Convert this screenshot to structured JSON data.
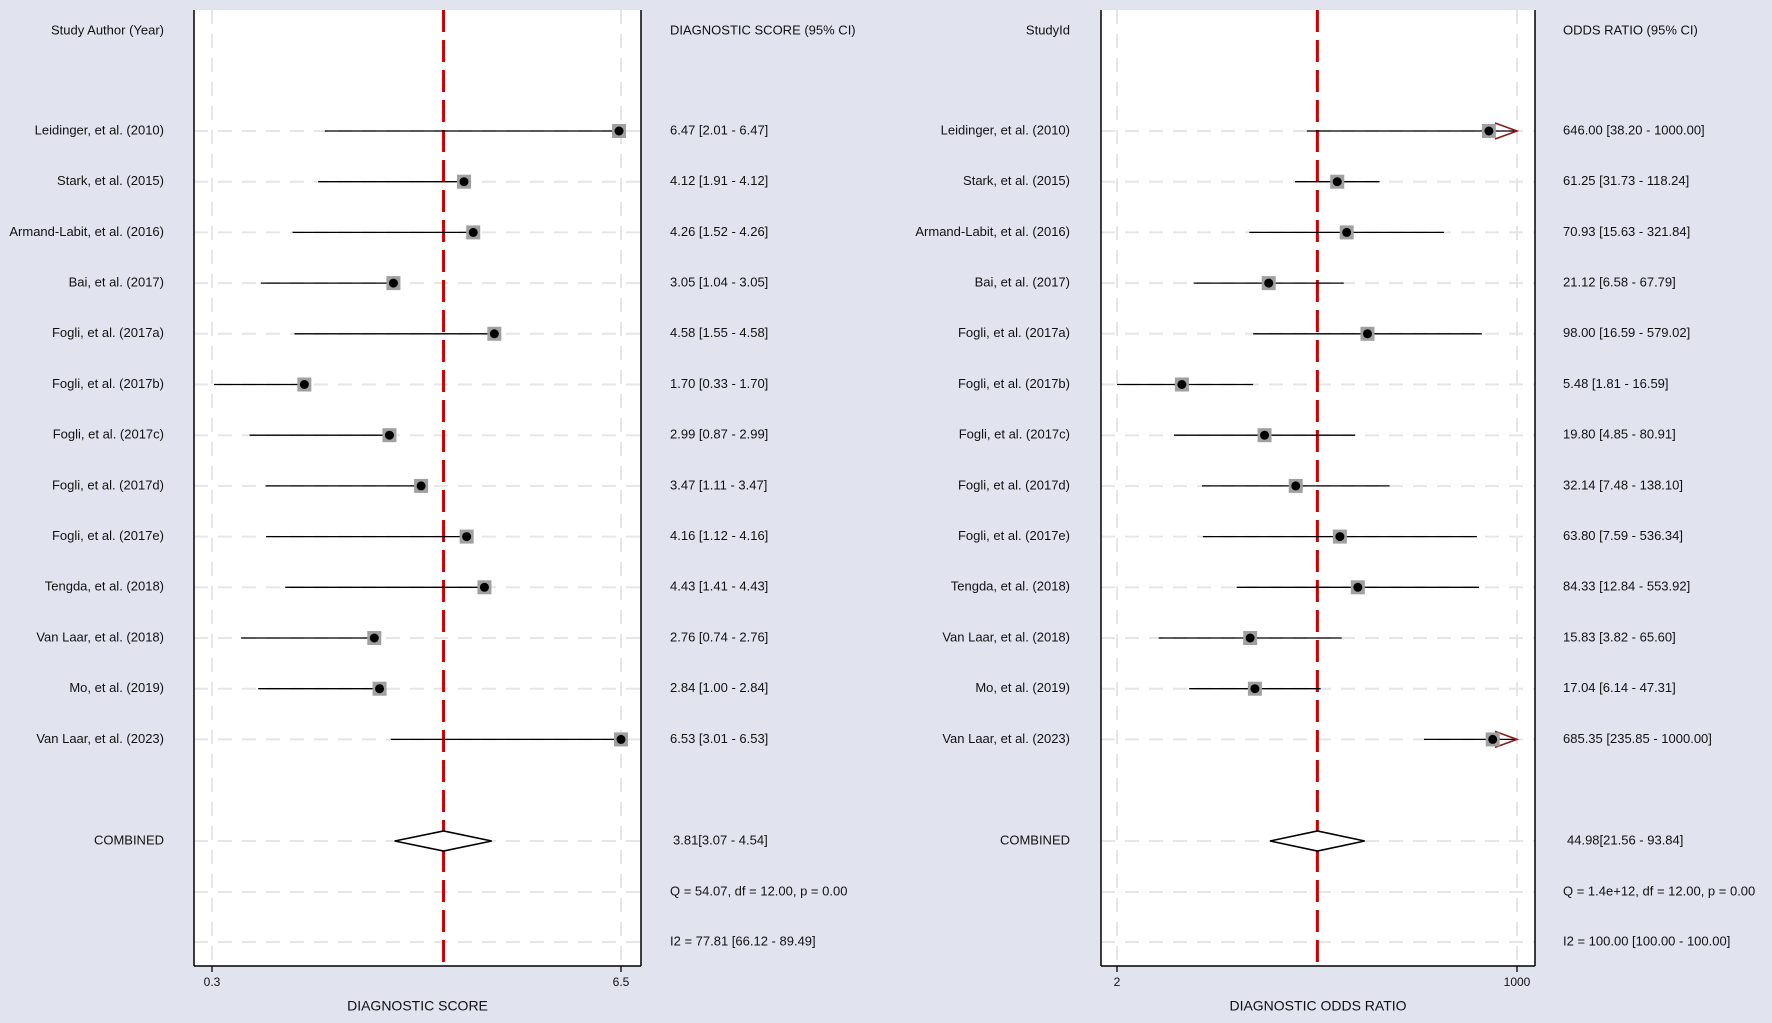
{
  "chart_data": [
    {
      "type": "forest",
      "column_left_header": "Study Author (Year)",
      "column_right_header": "DIAGNOSTIC SCORE (95% CI)",
      "xlabel": "DIAGNOSTIC SCORE",
      "scale": "linear",
      "xlim": [
        0.3,
        6.5
      ],
      "xticks": [
        "0.3",
        "6.5"
      ],
      "reference_line": 3.81,
      "studies": [
        {
          "name": "Leidinger, et al. (2010)",
          "est": 6.47,
          "lo": 2.01,
          "hi": 6.47,
          "label": "6.47 [2.01 - 6.47]"
        },
        {
          "name": "Stark, et al. (2015)",
          "est": 4.12,
          "lo": 1.91,
          "hi": 4.12,
          "label": "4.12 [1.91 - 4.12]"
        },
        {
          "name": "Armand-Labit, et al. (2016)",
          "est": 4.26,
          "lo": 1.52,
          "hi": 4.26,
          "label": "4.26 [1.52 - 4.26]"
        },
        {
          "name": "Bai, et al. (2017)",
          "est": 3.05,
          "lo": 1.04,
          "hi": 3.05,
          "label": "3.05 [1.04 - 3.05]"
        },
        {
          "name": "Fogli, et al. (2017a)",
          "est": 4.58,
          "lo": 1.55,
          "hi": 4.58,
          "label": "4.58 [1.55 - 4.58]"
        },
        {
          "name": "Fogli, et al. (2017b)",
          "est": 1.7,
          "lo": 0.33,
          "hi": 1.7,
          "label": "1.70 [0.33 - 1.70]"
        },
        {
          "name": "Fogli, et al. (2017c)",
          "est": 2.99,
          "lo": 0.87,
          "hi": 2.99,
          "label": "2.99 [0.87 - 2.99]"
        },
        {
          "name": "Fogli, et al. (2017d)",
          "est": 3.47,
          "lo": 1.11,
          "hi": 3.47,
          "label": "3.47 [1.11 - 3.47]"
        },
        {
          "name": "Fogli, et al. (2017e)",
          "est": 4.16,
          "lo": 1.12,
          "hi": 4.16,
          "label": "4.16 [1.12 - 4.16]"
        },
        {
          "name": "Tengda, et al. (2018)",
          "est": 4.43,
          "lo": 1.41,
          "hi": 4.43,
          "label": "4.43 [1.41 - 4.43]"
        },
        {
          "name": "Van Laar, et al. (2018)",
          "est": 2.76,
          "lo": 0.74,
          "hi": 2.76,
          "label": "2.76 [0.74 - 2.76]"
        },
        {
          "name": "Mo, et al. (2019)",
          "est": 2.84,
          "lo": 1.0,
          "hi": 2.84,
          "label": "2.84 [1.00 - 2.84]"
        },
        {
          "name": "Van Laar, et al. (2023)",
          "est": 6.53,
          "lo": 3.01,
          "hi": 6.53,
          "label": "6.53 [3.01 - 6.53]"
        }
      ],
      "combined": {
        "name": "COMBINED",
        "est": 3.81,
        "lo": 3.07,
        "hi": 4.54,
        "label": "3.81[3.07 - 4.54]"
      },
      "heterogeneity": "Q = 54.07, df = 12.00, p =  0.00",
      "i2": "I2 = 77.81 [66.12 - 89.49]"
    },
    {
      "type": "forest",
      "column_left_header": "StudyId",
      "column_right_header": "ODDS RATIO (95% CI)",
      "xlabel": "DIAGNOSTIC ODDS RATIO",
      "scale": "log",
      "xlim": [
        2,
        1000
      ],
      "xticks": [
        "2",
        "1000"
      ],
      "reference_line": 44.98,
      "studies": [
        {
          "name": "Leidinger, et al. (2010)",
          "est": 646.0,
          "lo": 38.2,
          "hi": 1000.0,
          "label": "646.00 [38.20 - 1000.00]"
        },
        {
          "name": "Stark, et al. (2015)",
          "est": 61.25,
          "lo": 31.73,
          "hi": 118.24,
          "label": "61.25 [31.73 - 118.24]"
        },
        {
          "name": "Armand-Labit, et al. (2016)",
          "est": 70.93,
          "lo": 15.63,
          "hi": 321.84,
          "label": "70.93 [15.63 - 321.84]"
        },
        {
          "name": "Bai, et al. (2017)",
          "est": 21.12,
          "lo": 6.58,
          "hi": 67.79,
          "label": "21.12 [6.58 - 67.79]"
        },
        {
          "name": "Fogli, et al. (2017a)",
          "est": 98.0,
          "lo": 16.59,
          "hi": 579.02,
          "label": "98.00 [16.59 - 579.02]"
        },
        {
          "name": "Fogli, et al. (2017b)",
          "est": 5.48,
          "lo": 1.81,
          "hi": 16.59,
          "label": "5.48 [1.81 - 16.59]"
        },
        {
          "name": "Fogli, et al. (2017c)",
          "est": 19.8,
          "lo": 4.85,
          "hi": 80.91,
          "label": "19.80 [4.85 - 80.91]"
        },
        {
          "name": "Fogli, et al. (2017d)",
          "est": 32.14,
          "lo": 7.48,
          "hi": 138.1,
          "label": "32.14 [7.48 - 138.10]"
        },
        {
          "name": "Fogli, et al. (2017e)",
          "est": 63.8,
          "lo": 7.59,
          "hi": 536.34,
          "label": "63.80 [7.59 - 536.34]"
        },
        {
          "name": "Tengda, et al. (2018)",
          "est": 84.33,
          "lo": 12.84,
          "hi": 553.92,
          "label": "84.33 [12.84 - 553.92]"
        },
        {
          "name": "Van Laar, et al. (2018)",
          "est": 15.83,
          "lo": 3.82,
          "hi": 65.6,
          "label": "15.83 [3.82 - 65.60]"
        },
        {
          "name": "Mo, et al. (2019)",
          "est": 17.04,
          "lo": 6.14,
          "hi": 47.31,
          "label": "17.04 [6.14 - 47.31]"
        },
        {
          "name": "Van Laar, et al. (2023)",
          "est": 685.35,
          "lo": 235.85,
          "hi": 1000.0,
          "label": "685.35 [235.85 - 1000.00]"
        }
      ],
      "combined": {
        "name": "COMBINED",
        "est": 44.98,
        "lo": 21.56,
        "hi": 93.84,
        "label": "44.98[21.56 - 93.84]"
      },
      "heterogeneity": "Q = 1.4e+12, df = 12.00, p =  0.00",
      "i2": "I2 = 100.00 [100.00 - 100.00]"
    }
  ],
  "colors": {
    "background": "#e1e4ef",
    "plot_area": "#ffffff",
    "reference_line": "#cc0000",
    "marker_box": "#a0a0a0",
    "marker_dot": "#000000",
    "arrow": "#8b1a1a",
    "gridline": "#e6e6e6"
  }
}
